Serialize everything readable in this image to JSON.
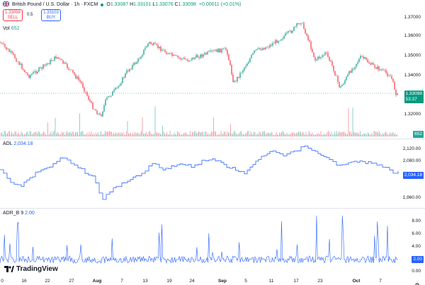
{
  "header": {
    "symbol_title": "British Pound / U.S. Dollar · 1h · FXCM",
    "ohlc": [
      {
        "k": "O",
        "v": "1.33087"
      },
      {
        "k": "H",
        "v": "1.33101"
      },
      {
        "k": "L",
        "v": "1.33076"
      },
      {
        "k": "C",
        "v": "1.33098"
      }
    ],
    "change": "+0.00011 (+0.01%)"
  },
  "trade": {
    "sell_price": "1.33098",
    "sell_label": "SELL",
    "spread": "0.5",
    "buy_price": "1.33103",
    "buy_label": "BUY"
  },
  "volume": {
    "label": "Vol",
    "value": "652"
  },
  "adl": {
    "label": "ADL",
    "value": "2,034.18"
  },
  "adrb": {
    "label": "ADR_B",
    "param": "9",
    "value": "2.00"
  },
  "price_axis": [
    "1.37000",
    "1.36000",
    "1.35000",
    "1.34000",
    "1.32000"
  ],
  "price_tag": {
    "price": "1.33098",
    "countdown": "53:37"
  },
  "volume_tag": "652",
  "adl_axis": [
    "2,120.00",
    "2,080.00",
    "1,960.00"
  ],
  "adl_tag": "2,034.18",
  "adrb_axis": [
    "8.00",
    "6.00",
    "4.00",
    "0.00"
  ],
  "adrb_tag": "2.00",
  "x_axis": [
    {
      "label": "0",
      "bold": false
    },
    {
      "label": "16",
      "bold": false
    },
    {
      "label": "22",
      "bold": false
    },
    {
      "label": "27",
      "bold": false
    },
    {
      "label": "Aug",
      "bold": true
    },
    {
      "label": "7",
      "bold": false
    },
    {
      "label": "13",
      "bold": false
    },
    {
      "label": "19",
      "bold": false
    },
    {
      "label": "24",
      "bold": false
    },
    {
      "label": "Sep",
      "bold": true
    },
    {
      "label": "5",
      "bold": false
    },
    {
      "label": "11",
      "bold": false
    },
    {
      "label": "17",
      "bold": false
    },
    {
      "label": "23",
      "bold": false
    },
    {
      "label": "Oct",
      "bold": true
    },
    {
      "label": "7",
      "bold": false
    }
  ],
  "brand": "TradingView",
  "colors": {
    "up": "#089981",
    "down": "#f23645",
    "accent": "#2962ff"
  }
}
